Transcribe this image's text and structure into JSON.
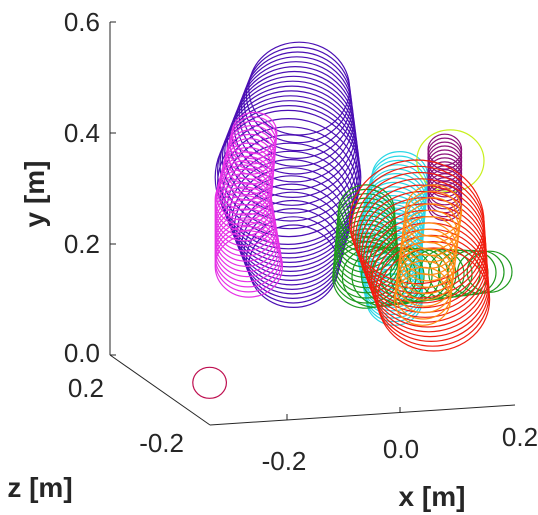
{
  "chart_data": {
    "type": "scatter",
    "projection": "3d",
    "title": "",
    "xlabel": "x [m]",
    "ylabel": "y [m]",
    "zlabel": "z [m]",
    "x_ticks": [
      "-0.2",
      "0.0",
      "0.2"
    ],
    "y_ticks": [
      "0.0",
      "0.2",
      "0.4",
      "0.6"
    ],
    "z_ticks": [
      "-0.2",
      "0.2"
    ],
    "ylim": [
      0,
      0.6
    ],
    "grid": false,
    "series": [
      {
        "color": "#4b0fb4",
        "description_units": "rings of circles (x,y in m, r in m)",
        "rings": [
          {
            "x": -0.18,
            "y": 0.48,
            "r": 0.09
          },
          {
            "x": -0.2,
            "y": 0.32,
            "r": 0.13
          },
          {
            "x": -0.19,
            "y": 0.16,
            "r": 0.08
          }
        ]
      },
      {
        "color": "#e632e6",
        "rings": [
          {
            "x": -0.26,
            "y": 0.4,
            "r": 0.04
          },
          {
            "x": -0.28,
            "y": 0.28,
            "r": 0.05
          },
          {
            "x": -0.27,
            "y": 0.16,
            "r": 0.06
          }
        ]
      },
      {
        "color": "#2bd7e6",
        "rings": [
          {
            "x": 0.0,
            "y": 0.32,
            "r": 0.05
          },
          {
            "x": -0.02,
            "y": 0.2,
            "r": 0.06
          },
          {
            "x": -0.01,
            "y": 0.1,
            "r": 0.05
          }
        ]
      },
      {
        "color": "#1f9a1f",
        "rings": [
          {
            "x": -0.06,
            "y": 0.26,
            "r": 0.05
          },
          {
            "x": -0.06,
            "y": 0.14,
            "r": 0.06
          },
          {
            "x": 0.16,
            "y": 0.15,
            "r": 0.04
          }
        ]
      },
      {
        "color": "#c8f01e",
        "rings": [
          {
            "x": 0.09,
            "y": 0.35,
            "r": 0.06
          }
        ]
      },
      {
        "color": "#8c0f78",
        "rings": [
          {
            "x": 0.08,
            "y": 0.37,
            "r": 0.03
          },
          {
            "x": 0.08,
            "y": 0.27,
            "r": 0.03
          }
        ]
      },
      {
        "color": "#f01e10",
        "rings": [
          {
            "x": 0.03,
            "y": 0.24,
            "r": 0.12
          },
          {
            "x": 0.06,
            "y": 0.1,
            "r": 0.1
          }
        ]
      },
      {
        "color": "#ff8c14",
        "rings": [
          {
            "x": 0.06,
            "y": 0.26,
            "r": 0.05
          },
          {
            "x": 0.04,
            "y": 0.1,
            "r": 0.05
          }
        ]
      },
      {
        "color": "#be0f50",
        "rings": [
          {
            "x": -0.34,
            "y": -0.05,
            "r": 0.03
          }
        ]
      }
    ]
  }
}
